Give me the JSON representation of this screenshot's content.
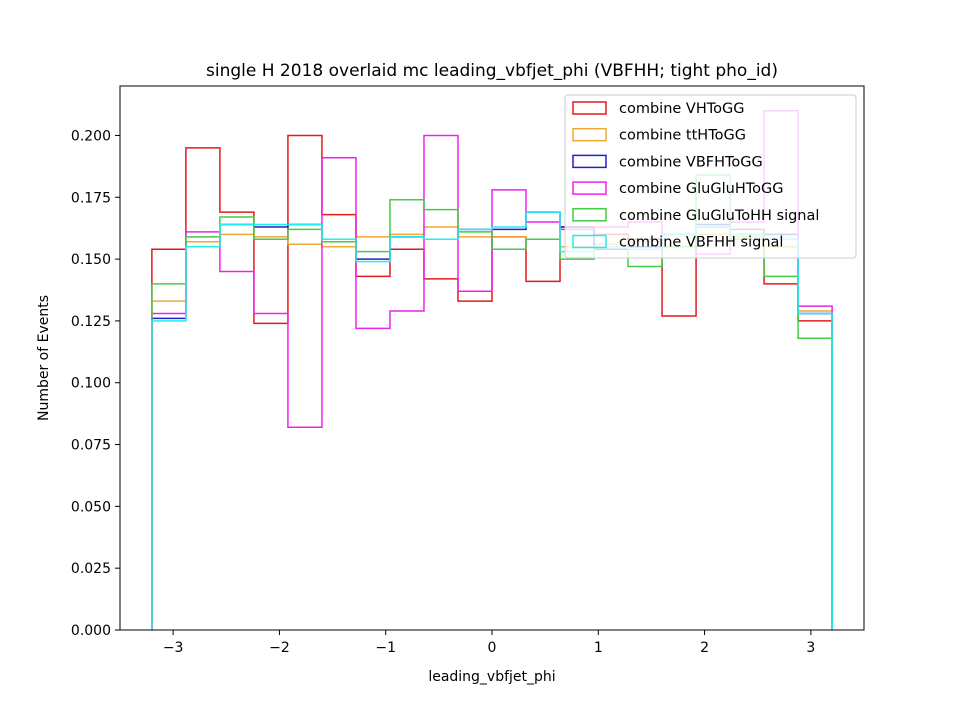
{
  "chart_data": {
    "type": "histogram-step",
    "title": "single H 2018 overlaid mc leading_vbfjet_phi (VBFHH; tight pho_id)",
    "xlabel": "leading_vbfjet_phi",
    "ylabel": "Number of Events",
    "xlim": [
      -3.5,
      3.5
    ],
    "ylim": [
      0,
      0.22
    ],
    "xticks": [
      -3,
      -2,
      -1,
      0,
      1,
      2,
      3
    ],
    "xtick_labels": [
      "−3",
      "−2",
      "−1",
      "0",
      "1",
      "2",
      "3"
    ],
    "yticks": [
      0,
      0.025,
      0.05,
      0.075,
      0.1,
      0.125,
      0.15,
      0.175,
      0.2
    ],
    "ytick_labels": [
      "0.000",
      "0.025",
      "0.050",
      "0.075",
      "0.100",
      "0.125",
      "0.150",
      "0.175",
      "0.200"
    ],
    "bin_edges": [
      -3.2,
      -2.88,
      -2.56,
      -2.24,
      -1.92,
      -1.6,
      -1.28,
      -0.96,
      -0.64,
      -0.32,
      0.0,
      0.32,
      0.64,
      0.96,
      1.28,
      1.6,
      1.92,
      2.24,
      2.56,
      2.88,
      3.2
    ],
    "legend_position": "upper right",
    "series": [
      {
        "name": "combine VHToGG",
        "color": "#e31a1c",
        "values": [
          0.154,
          0.195,
          0.169,
          0.124,
          0.2,
          0.168,
          0.143,
          0.154,
          0.142,
          0.133,
          0.159,
          0.141,
          0.163,
          0.16,
          0.158,
          0.127,
          0.163,
          0.162,
          0.14,
          0.125
        ]
      },
      {
        "name": "combine ttHToGG",
        "color": "#f0a830",
        "values": [
          0.133,
          0.157,
          0.16,
          0.159,
          0.156,
          0.155,
          0.159,
          0.16,
          0.163,
          0.159,
          0.159,
          0.158,
          0.155,
          0.156,
          0.157,
          0.16,
          0.16,
          0.159,
          0.155,
          0.129
        ]
      },
      {
        "name": "combine VBFHToGG",
        "color": "#2020cc",
        "values": [
          0.126,
          0.155,
          0.164,
          0.163,
          0.164,
          0.158,
          0.15,
          0.159,
          0.158,
          0.162,
          0.162,
          0.169,
          0.163,
          0.154,
          0.155,
          0.16,
          0.164,
          0.16,
          0.16,
          0.128
        ]
      },
      {
        "name": "combine GluGluHToGG",
        "color": "#ee22ee",
        "values": [
          0.128,
          0.161,
          0.145,
          0.128,
          0.082,
          0.191,
          0.122,
          0.129,
          0.2,
          0.137,
          0.178,
          0.165,
          0.162,
          0.163,
          0.165,
          0.16,
          0.152,
          0.165,
          0.21,
          0.131
        ]
      },
      {
        "name": "combine GluGluToHH signal",
        "color": "#44cc44",
        "values": [
          0.14,
          0.159,
          0.167,
          0.158,
          0.162,
          0.157,
          0.153,
          0.174,
          0.17,
          0.161,
          0.154,
          0.158,
          0.15,
          0.155,
          0.147,
          0.155,
          0.184,
          0.158,
          0.143,
          0.118
        ]
      },
      {
        "name": "combine VBFHH signal",
        "color": "#22eeee",
        "values": [
          0.125,
          0.155,
          0.164,
          0.164,
          0.164,
          0.158,
          0.149,
          0.159,
          0.158,
          0.162,
          0.163,
          0.169,
          0.153,
          0.155,
          0.154,
          0.16,
          0.163,
          0.16,
          0.158,
          0.128
        ]
      }
    ]
  }
}
